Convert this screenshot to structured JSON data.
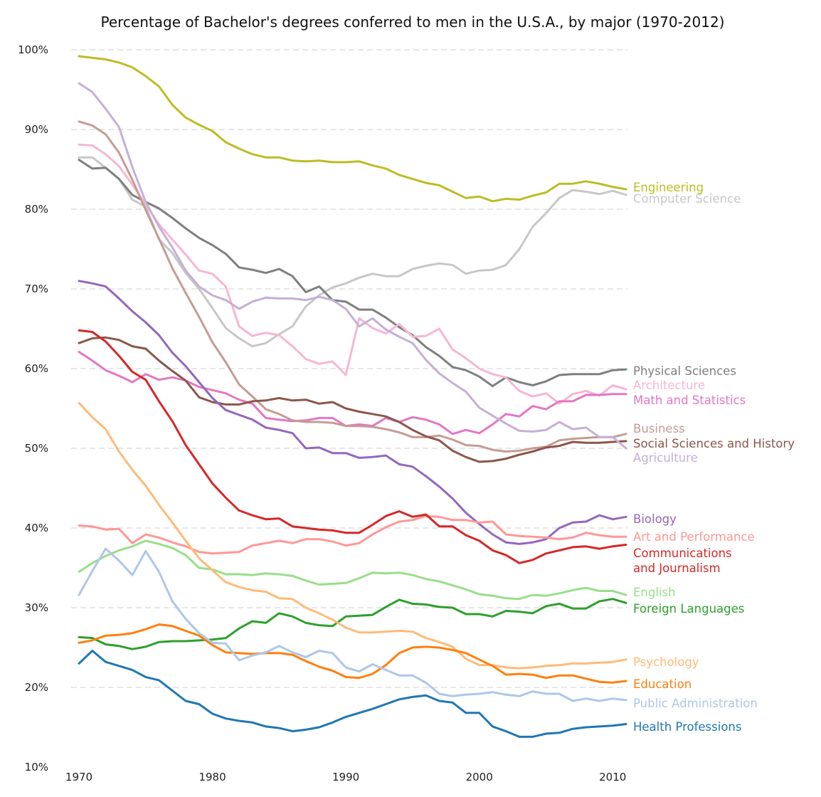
{
  "chart_data": {
    "type": "line",
    "title": "Percentage of Bachelor's degrees conferred to men in the U.S.A., by major (1970-2012)",
    "xlabel": "",
    "ylabel": "",
    "xlim": [
      1970,
      2011
    ],
    "ylim": [
      10,
      100
    ],
    "x_ticks": [
      "1970",
      "1980",
      "1990",
      "2000",
      "2010"
    ],
    "y_ticks": [
      "10%",
      "20%",
      "30%",
      "40%",
      "50%",
      "60%",
      "70%",
      "80%",
      "90%",
      "100%"
    ],
    "grid": "horizontal dashed",
    "legend": "direct labels at line ends (right)",
    "x": [
      1970,
      1971,
      1972,
      1973,
      1974,
      1975,
      1976,
      1977,
      1978,
      1979,
      1980,
      1981,
      1982,
      1983,
      1984,
      1985,
      1986,
      1987,
      1988,
      1989,
      1990,
      1991,
      1992,
      1993,
      1994,
      1995,
      1996,
      1997,
      1998,
      1999,
      2000,
      2001,
      2002,
      2003,
      2004,
      2005,
      2006,
      2007,
      2008,
      2009,
      2010,
      2011
    ],
    "series": [
      {
        "name": "Engineering",
        "label_lines": [
          "Engineering"
        ],
        "color": "#bcbd22",
        "values": [
          99.2,
          99.0,
          98.8,
          98.4,
          97.8,
          96.7,
          95.4,
          93.1,
          91.5,
          90.6,
          89.8,
          88.4,
          87.6,
          86.9,
          86.5,
          86.5,
          86.1,
          86.0,
          86.1,
          85.9,
          85.9,
          86.0,
          85.5,
          85.1,
          84.3,
          83.8,
          83.3,
          83.0,
          82.2,
          81.4,
          81.6,
          81.0,
          81.3,
          81.2,
          81.7,
          82.1,
          83.2,
          83.2,
          83.5,
          83.2,
          82.8,
          82.5
        ]
      },
      {
        "name": "Computer Science",
        "label_lines": [
          "Computer Science"
        ],
        "color": "#c7c7c7",
        "values": [
          86.5,
          86.5,
          85.2,
          83.8,
          81.2,
          80.3,
          76.2,
          74.5,
          72.0,
          70.0,
          67.6,
          65.1,
          63.8,
          62.8,
          63.2,
          64.3,
          65.3,
          67.8,
          69.2,
          70.2,
          70.7,
          71.4,
          71.9,
          71.6,
          71.6,
          72.5,
          72.9,
          73.2,
          73.0,
          71.9,
          72.3,
          72.4,
          73.0,
          75.0,
          77.8,
          79.5,
          81.4,
          82.4,
          82.2,
          81.9,
          82.3,
          81.8
        ]
      },
      {
        "name": "Physical Sciences",
        "label_lines": [
          "Physical Sciences"
        ],
        "color": "#7f7f7f",
        "values": [
          86.2,
          85.1,
          85.2,
          83.8,
          81.8,
          80.9,
          80.1,
          78.9,
          77.6,
          76.4,
          75.5,
          74.4,
          72.7,
          72.4,
          72.0,
          72.5,
          71.6,
          69.6,
          70.3,
          68.6,
          68.4,
          67.4,
          67.4,
          66.4,
          65.2,
          64.2,
          62.7,
          61.6,
          60.2,
          59.8,
          59.0,
          57.8,
          58.9,
          58.3,
          57.9,
          58.4,
          59.2,
          59.3,
          59.3,
          59.3,
          59.8,
          59.9
        ]
      },
      {
        "name": "Architecture",
        "label_lines": [
          "Architecture"
        ],
        "color": "#f7b6d2",
        "values": [
          88.1,
          88.0,
          86.9,
          85.4,
          83.1,
          80.6,
          78.1,
          76.2,
          74.3,
          72.3,
          71.9,
          70.3,
          65.3,
          64.1,
          64.5,
          64.2,
          62.8,
          61.2,
          60.6,
          60.9,
          59.2,
          66.3,
          65.1,
          64.4,
          65.6,
          64.0,
          64.1,
          65.0,
          62.4,
          61.3,
          60.0,
          59.3,
          58.9,
          57.2,
          56.5,
          56.9,
          55.6,
          56.8,
          57.2,
          56.6,
          57.9,
          57.4
        ]
      },
      {
        "name": "Math and Statistics",
        "label_lines": [
          "Math and Statistics"
        ],
        "color": "#e377c2",
        "values": [
          62.1,
          61.0,
          59.8,
          59.1,
          58.3,
          59.3,
          58.6,
          58.9,
          58.5,
          57.7,
          57.3,
          56.9,
          56.1,
          55.6,
          53.8,
          53.6,
          53.4,
          53.5,
          53.8,
          53.8,
          52.8,
          53.0,
          52.8,
          53.8,
          53.3,
          53.9,
          53.6,
          53.0,
          51.8,
          52.3,
          51.9,
          53.0,
          54.3,
          54.0,
          55.3,
          54.9,
          55.9,
          55.9,
          56.7,
          56.7,
          56.8,
          56.8
        ]
      },
      {
        "name": "Business",
        "label_lines": [
          "Business"
        ],
        "color": "#c49c94",
        "values": [
          91.0,
          90.5,
          89.4,
          87.1,
          83.7,
          79.9,
          76.3,
          72.6,
          69.5,
          66.5,
          63.3,
          60.8,
          58.0,
          56.5,
          54.9,
          54.3,
          53.5,
          53.3,
          53.3,
          53.2,
          52.8,
          52.8,
          52.7,
          52.4,
          52.0,
          51.4,
          51.4,
          51.6,
          51.1,
          50.4,
          50.3,
          49.8,
          49.6,
          49.7,
          50.0,
          50.2,
          51.0,
          51.2,
          51.3,
          51.4,
          51.4,
          51.8
        ]
      },
      {
        "name": "Social Sciences and History",
        "label_lines": [
          "Social Sciences and History"
        ],
        "color": "#8c564b",
        "values": [
          63.2,
          63.8,
          63.9,
          63.6,
          62.8,
          62.5,
          61.0,
          59.7,
          58.5,
          56.4,
          55.8,
          55.5,
          55.5,
          55.9,
          56.0,
          56.3,
          56.0,
          56.1,
          55.6,
          55.8,
          55.0,
          54.6,
          54.3,
          54.0,
          53.3,
          52.3,
          51.5,
          51.0,
          49.7,
          48.9,
          48.3,
          48.4,
          48.7,
          49.2,
          49.6,
          50.1,
          50.3,
          50.8,
          50.7,
          50.7,
          50.8,
          50.9
        ]
      },
      {
        "name": "Agriculture",
        "label_lines": [
          "Agriculture"
        ],
        "color": "#c5b0d5",
        "values": [
          95.8,
          94.7,
          92.6,
          90.3,
          85.3,
          80.9,
          77.8,
          75.2,
          72.3,
          70.3,
          69.2,
          68.6,
          67.5,
          68.4,
          68.9,
          68.8,
          68.8,
          68.6,
          69.0,
          68.6,
          67.5,
          65.3,
          66.3,
          64.9,
          64.0,
          63.2,
          61.1,
          59.4,
          58.2,
          57.1,
          55.1,
          54.1,
          53.1,
          52.2,
          52.1,
          52.3,
          53.3,
          52.4,
          52.6,
          51.4,
          51.4,
          50.0
        ]
      },
      {
        "name": "Biology",
        "label_lines": [
          "Biology"
        ],
        "color": "#9467bd",
        "values": [
          71.0,
          70.7,
          70.3,
          68.8,
          67.2,
          65.8,
          64.2,
          62.0,
          60.3,
          58.3,
          56.3,
          54.8,
          54.2,
          53.6,
          52.6,
          52.3,
          51.9,
          50.0,
          50.1,
          49.4,
          49.4,
          48.8,
          48.9,
          49.1,
          48.0,
          47.7,
          46.5,
          45.2,
          43.7,
          41.9,
          40.5,
          39.2,
          38.2,
          38.0,
          38.2,
          38.6,
          40.0,
          40.7,
          40.8,
          41.6,
          41.1,
          41.4
        ]
      },
      {
        "name": "Art and Performance",
        "label_lines": [
          "Art and Performance"
        ],
        "color": "#ff9896",
        "values": [
          40.3,
          40.2,
          39.8,
          39.9,
          38.1,
          39.2,
          38.8,
          38.2,
          37.7,
          37.0,
          36.8,
          36.9,
          37.0,
          37.8,
          38.1,
          38.4,
          38.1,
          38.6,
          38.6,
          38.3,
          37.8,
          38.1,
          39.2,
          40.1,
          40.8,
          41.0,
          41.5,
          41.4,
          41.0,
          41.0,
          40.7,
          40.8,
          39.2,
          39.0,
          38.9,
          38.8,
          38.6,
          38.8,
          39.4,
          39.1,
          38.9,
          38.9
        ]
      },
      {
        "name": "Communications and Journalism",
        "label_lines": [
          "Communications",
          "and Journalism"
        ],
        "color": "#d62728",
        "values": [
          64.8,
          64.6,
          63.4,
          61.6,
          59.6,
          58.6,
          55.9,
          53.4,
          50.4,
          48.0,
          45.6,
          43.8,
          42.2,
          41.6,
          41.1,
          41.2,
          40.2,
          40.0,
          39.8,
          39.7,
          39.4,
          39.4,
          40.4,
          41.5,
          42.1,
          41.4,
          41.7,
          40.2,
          40.2,
          39.1,
          38.4,
          37.2,
          36.6,
          35.6,
          36.0,
          36.8,
          37.2,
          37.6,
          37.7,
          37.4,
          37.7,
          37.9
        ]
      },
      {
        "name": "English",
        "label_lines": [
          "English"
        ],
        "color": "#98df8a",
        "values": [
          34.5,
          35.6,
          36.5,
          37.2,
          37.7,
          38.4,
          38.0,
          37.5,
          36.6,
          35.0,
          34.8,
          34.2,
          34.2,
          34.1,
          34.3,
          34.2,
          34.0,
          33.4,
          32.9,
          33.0,
          33.1,
          33.7,
          34.4,
          34.3,
          34.4,
          34.1,
          33.6,
          33.3,
          32.8,
          32.3,
          31.7,
          31.5,
          31.2,
          31.1,
          31.6,
          31.5,
          31.8,
          32.2,
          32.5,
          32.1,
          32.1,
          31.6
        ]
      },
      {
        "name": "Foreign Languages",
        "label_lines": [
          "Foreign Languages"
        ],
        "color": "#2ca02c",
        "values": [
          26.3,
          26.2,
          25.4,
          25.2,
          24.8,
          25.1,
          25.7,
          25.8,
          25.8,
          25.9,
          26.0,
          26.2,
          27.4,
          28.3,
          28.1,
          29.3,
          28.9,
          28.1,
          27.8,
          27.7,
          28.9,
          29.0,
          29.1,
          30.1,
          31.0,
          30.5,
          30.4,
          30.1,
          30.0,
          29.2,
          29.2,
          28.9,
          29.6,
          29.5,
          29.3,
          30.2,
          30.5,
          29.9,
          29.9,
          30.8,
          31.1,
          30.6
        ]
      },
      {
        "name": "Psychology",
        "label_lines": [
          "Psychology"
        ],
        "color": "#ffbb78",
        "values": [
          55.7,
          53.9,
          52.4,
          49.6,
          47.3,
          45.3,
          42.9,
          40.7,
          38.4,
          36.2,
          34.7,
          33.2,
          32.6,
          32.2,
          32.0,
          31.2,
          31.1,
          30.0,
          29.3,
          28.5,
          27.5,
          26.9,
          26.9,
          27.0,
          27.1,
          27.0,
          26.2,
          25.7,
          25.1,
          23.6,
          22.8,
          22.8,
          22.5,
          22.4,
          22.5,
          22.7,
          22.8,
          23.0,
          23.0,
          23.1,
          23.2,
          23.5
        ]
      },
      {
        "name": "Education",
        "label_lines": [
          "Education"
        ],
        "color": "#ff7f0e",
        "values": [
          25.6,
          25.9,
          26.5,
          26.6,
          26.8,
          27.3,
          27.9,
          27.7,
          27.1,
          26.5,
          25.3,
          24.4,
          24.3,
          24.2,
          24.3,
          24.3,
          24.1,
          23.3,
          22.6,
          22.1,
          21.3,
          21.2,
          21.7,
          22.8,
          24.3,
          25.0,
          25.1,
          25.0,
          24.7,
          24.3,
          23.5,
          22.7,
          21.6,
          21.7,
          21.6,
          21.2,
          21.5,
          21.5,
          21.1,
          20.7,
          20.6,
          20.8
        ]
      },
      {
        "name": "Public Administration",
        "label_lines": [
          "Public Administration"
        ],
        "color": "#aec7e8",
        "values": [
          31.6,
          34.6,
          37.4,
          35.9,
          34.1,
          37.1,
          34.5,
          30.8,
          28.6,
          26.8,
          25.6,
          25.5,
          23.4,
          24.0,
          24.4,
          25.2,
          24.4,
          23.8,
          24.6,
          24.3,
          22.5,
          22.0,
          22.9,
          22.2,
          21.5,
          21.5,
          20.6,
          19.2,
          18.9,
          19.1,
          19.2,
          19.4,
          19.1,
          18.9,
          19.5,
          19.2,
          19.2,
          18.3,
          18.6,
          18.3,
          18.6,
          18.4
        ]
      },
      {
        "name": "Health Professions",
        "label_lines": [
          "Health Professions"
        ],
        "color": "#1f77b4",
        "values": [
          23.0,
          24.6,
          23.2,
          22.7,
          22.2,
          21.3,
          20.9,
          19.6,
          18.3,
          17.9,
          16.7,
          16.1,
          15.8,
          15.6,
          15.1,
          14.9,
          14.5,
          14.7,
          15.0,
          15.6,
          16.3,
          16.8,
          17.3,
          17.9,
          18.5,
          18.8,
          19.0,
          18.3,
          18.1,
          16.8,
          16.8,
          15.1,
          14.5,
          13.8,
          13.8,
          14.2,
          14.3,
          14.8,
          15.0,
          15.1,
          15.2,
          15.4
        ]
      }
    ]
  }
}
